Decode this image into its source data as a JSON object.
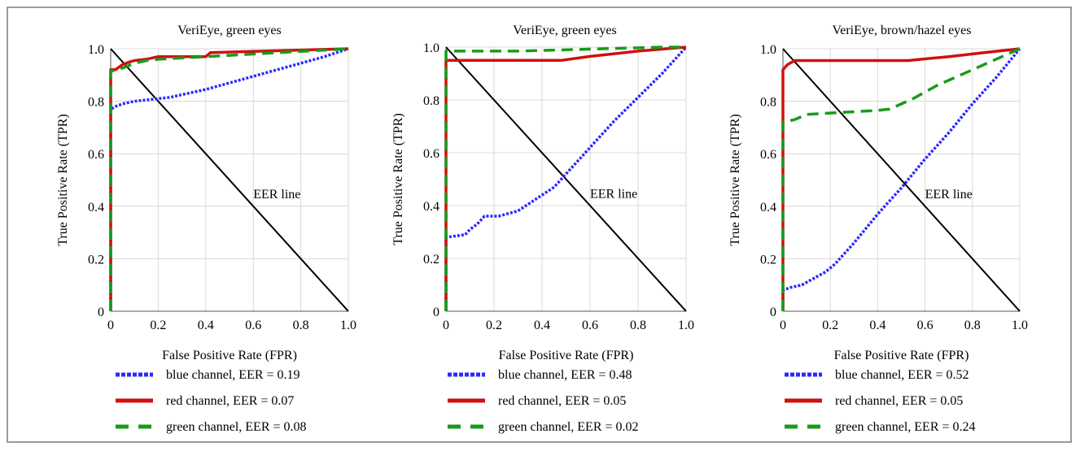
{
  "colors": {
    "blue": "#2a2aff",
    "red": "#d01010",
    "green": "#1a9a1a",
    "eer": "#000000",
    "grid": "#d8d8d8"
  },
  "chart_data": [
    {
      "type": "line",
      "title": "VeriEye, green eyes",
      "xlabel": "False Positive Rate (FPR)",
      "ylabel": "True Positive Rate (TPR)",
      "xlim": [
        0,
        1
      ],
      "ylim": [
        0,
        1
      ],
      "xticks": [
        "0",
        "0.2",
        "0.4",
        "0.6",
        "0.8",
        "1.0"
      ],
      "yticks": [
        "0",
        "0.2",
        "0.4",
        "0.6",
        "0.8",
        "1.0"
      ],
      "grid": true,
      "eer_label": "EER line",
      "series": [
        {
          "name": "blue channel, EER = 0.19",
          "color": "blue",
          "style": "dotted",
          "x": [
            0,
            0,
            0.02,
            0.05,
            0.1,
            0.15,
            0.2,
            0.25,
            0.3,
            0.4,
            0.5,
            0.6,
            0.7,
            0.8,
            0.9,
            1.0
          ],
          "y": [
            0,
            0.77,
            0.78,
            0.79,
            0.8,
            0.805,
            0.81,
            0.815,
            0.825,
            0.845,
            0.87,
            0.895,
            0.92,
            0.945,
            0.97,
            1.0
          ]
        },
        {
          "name": "red channel, EER = 0.07",
          "color": "red",
          "style": "solid",
          "x": [
            0,
            0,
            0.02,
            0.05,
            0.08,
            0.1,
            0.15,
            0.2,
            0.3,
            0.4,
            0.42,
            0.6,
            0.8,
            1.0
          ],
          "y": [
            0,
            0.92,
            0.92,
            0.94,
            0.95,
            0.955,
            0.96,
            0.97,
            0.97,
            0.97,
            0.985,
            0.99,
            0.995,
            1.0
          ]
        },
        {
          "name": "green channel, EER = 0.08",
          "color": "green",
          "style": "dashed",
          "x": [
            0,
            0,
            0.03,
            0.06,
            0.1,
            0.15,
            0.2,
            0.3,
            0.4,
            0.5,
            0.6,
            0.7,
            0.8,
            0.9,
            1.0
          ],
          "y": [
            0,
            0.915,
            0.92,
            0.93,
            0.945,
            0.955,
            0.96,
            0.965,
            0.97,
            0.975,
            0.98,
            0.985,
            0.99,
            0.995,
            1.0
          ]
        }
      ]
    },
    {
      "type": "line",
      "title": "VeriEye, green eyes",
      "xlabel": "False Positive Rate (FPR)",
      "ylabel": "True Positive Rate (TPR)",
      "xlim": [
        0,
        1
      ],
      "ylim": [
        0,
        1
      ],
      "xticks": [
        "0",
        "0.2",
        "0.4",
        "0.6",
        "0.8",
        "1.0"
      ],
      "yticks": [
        "0",
        "0.2",
        "0.4",
        "0.6",
        "0.8",
        "1.0"
      ],
      "grid": true,
      "eer_label": "EER line",
      "series": [
        {
          "name": "blue channel, EER = 0.48",
          "color": "blue",
          "style": "dotted",
          "x": [
            0,
            0,
            0.08,
            0.1,
            0.13,
            0.16,
            0.22,
            0.3,
            0.35,
            0.4,
            0.45,
            0.5,
            0.6,
            0.7,
            0.8,
            0.9,
            1.0
          ],
          "y": [
            0,
            0.28,
            0.29,
            0.31,
            0.33,
            0.36,
            0.36,
            0.38,
            0.41,
            0.44,
            0.47,
            0.52,
            0.62,
            0.72,
            0.81,
            0.9,
            1.0
          ]
        },
        {
          "name": "red channel, EER = 0.05",
          "color": "red",
          "style": "solid",
          "x": [
            0,
            0,
            0.1,
            0.3,
            0.48,
            0.6,
            0.8,
            1.0
          ],
          "y": [
            0,
            0.95,
            0.95,
            0.95,
            0.95,
            0.965,
            0.985,
            1.0
          ]
        },
        {
          "name": "green channel, EER = 0.02",
          "color": "green",
          "style": "dashed",
          "x": [
            0,
            0,
            0.1,
            0.3,
            0.5,
            0.7,
            0.9,
            1.0
          ],
          "y": [
            0,
            0.985,
            0.985,
            0.985,
            0.99,
            0.995,
            1.0,
            1.0
          ]
        }
      ]
    },
    {
      "type": "line",
      "title": "VeriEye, brown/hazel eyes",
      "xlabel": "False Positive Rate (FPR)",
      "ylabel": "True Positive Rate (TPR)",
      "xlim": [
        0,
        1
      ],
      "ylim": [
        0,
        1
      ],
      "xticks": [
        "0",
        "0.2",
        "0.4",
        "0.6",
        "0.8",
        "1.0"
      ],
      "yticks": [
        "0",
        "0.2",
        "0.4",
        "0.6",
        "0.8",
        "1.0"
      ],
      "grid": true,
      "eer_label": "EER line",
      "series": [
        {
          "name": "blue channel, EER = 0.52",
          "color": "blue",
          "style": "dotted",
          "x": [
            0,
            0,
            0.03,
            0.08,
            0.12,
            0.18,
            0.22,
            0.3,
            0.4,
            0.5,
            0.6,
            0.7,
            0.8,
            0.9,
            1.0
          ],
          "y": [
            0,
            0.08,
            0.09,
            0.1,
            0.12,
            0.15,
            0.18,
            0.26,
            0.37,
            0.47,
            0.58,
            0.68,
            0.79,
            0.89,
            1.0
          ]
        },
        {
          "name": "red channel, EER = 0.05",
          "color": "red",
          "style": "solid",
          "x": [
            0,
            0,
            0.01,
            0.02,
            0.05,
            0.3,
            0.53,
            0.7,
            0.85,
            1.0
          ],
          "y": [
            0,
            0.92,
            0.93,
            0.94,
            0.955,
            0.955,
            0.955,
            0.97,
            0.985,
            1.0
          ]
        },
        {
          "name": "green channel, EER = 0.24",
          "color": "green",
          "style": "dashed",
          "x": [
            0,
            0,
            0.05,
            0.1,
            0.2,
            0.3,
            0.4,
            0.45,
            0.55,
            0.65,
            0.75,
            0.85,
            1.0
          ],
          "y": [
            0,
            0.72,
            0.73,
            0.75,
            0.755,
            0.76,
            0.765,
            0.77,
            0.81,
            0.86,
            0.9,
            0.94,
            1.0
          ]
        }
      ]
    }
  ]
}
